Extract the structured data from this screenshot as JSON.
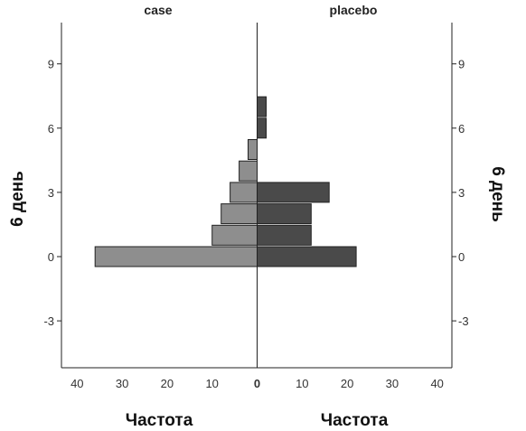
{
  "chart_data": {
    "type": "bar",
    "orientation": "population-pyramid",
    "panels": [
      {
        "name": "case",
        "direction": "left"
      },
      {
        "name": "placebo",
        "direction": "right"
      }
    ],
    "y_label_left": "6 день",
    "y_label_right": "6 день",
    "x_label": "Частота",
    "y_ticks": [
      "9",
      "6",
      "3",
      "0",
      "-3"
    ],
    "x_ticks_left": [
      "40",
      "30",
      "20",
      "10",
      "0"
    ],
    "x_ticks_right": [
      "0",
      "10",
      "20",
      "30",
      "40"
    ],
    "ylim": [
      -5,
      11
    ],
    "xlim": [
      0,
      40
    ],
    "grid": false,
    "series": [
      {
        "name": "case",
        "color": "#8e8e8e",
        "points": [
          {
            "y": 0,
            "value": 36
          },
          {
            "y": 1,
            "value": 10
          },
          {
            "y": 2,
            "value": 8
          },
          {
            "y": 3,
            "value": 6
          },
          {
            "y": 4,
            "value": 4
          },
          {
            "y": 5,
            "value": 2
          }
        ]
      },
      {
        "name": "placebo",
        "color": "#4a4a4a",
        "points": [
          {
            "y": 0,
            "value": 22
          },
          {
            "y": 1,
            "value": 12
          },
          {
            "y": 2,
            "value": 12
          },
          {
            "y": 3,
            "value": 16
          },
          {
            "y": 6,
            "value": 2
          },
          {
            "y": 7,
            "value": 2
          }
        ]
      }
    ]
  }
}
